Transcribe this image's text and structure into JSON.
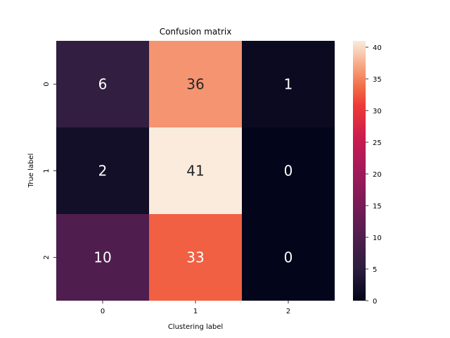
{
  "chart_data": {
    "type": "heatmap",
    "title": "Confusion matrix",
    "xlabel": "Clustering label",
    "ylabel": "True label",
    "x_categories": [
      "0",
      "1",
      "2"
    ],
    "y_categories": [
      "0",
      "1",
      "2"
    ],
    "values": [
      [
        6,
        36,
        1
      ],
      [
        2,
        41,
        0
      ],
      [
        10,
        33,
        0
      ]
    ],
    "colorbar": {
      "min": 0,
      "max": 41,
      "ticks": [
        "0",
        "5",
        "10",
        "15",
        "20",
        "25",
        "30",
        "35",
        "40"
      ],
      "colormap": "rocket"
    }
  }
}
